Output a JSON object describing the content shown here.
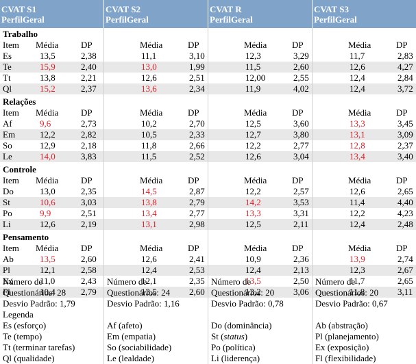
{
  "header": [
    {
      "title": "CVAT S1",
      "sub": "PerfilGeral"
    },
    {
      "title": "CVAT S2",
      "sub": "PerfilGeral"
    },
    {
      "title": "CVAT R",
      "sub": "PerfilGeral"
    },
    {
      "title": "CVAT S3",
      "sub": "PerfilGeral"
    }
  ],
  "col_labels": {
    "item": "Item",
    "media": "Média",
    "dp": "DP"
  },
  "sections": [
    {
      "name": "Trabalho",
      "rows": [
        {
          "item": "Es",
          "v": [
            [
              "13,5",
              false,
              "2,38"
            ],
            [
              "11,1",
              false,
              "3,10"
            ],
            [
              "12,3",
              false,
              "3,29"
            ],
            [
              "11,7",
              false,
              "2,83"
            ]
          ]
        },
        {
          "item": "Te",
          "v": [
            [
              "15,9",
              true,
              "2,40"
            ],
            [
              "13,0",
              true,
              "1,99"
            ],
            [
              "11,5",
              false,
              "2,60"
            ],
            [
              "12,6",
              false,
              "4,27"
            ]
          ]
        },
        {
          "item": "Tt",
          "v": [
            [
              "13,8",
              false,
              "2,21"
            ],
            [
              "12,6",
              false,
              "2,51"
            ],
            [
              "12,00",
              false,
              "2,55"
            ],
            [
              "12,4",
              false,
              "2,84"
            ]
          ]
        },
        {
          "item": "Ql",
          "v": [
            [
              "15,2",
              true,
              "2,37"
            ],
            [
              "13,6",
              true,
              "2,34"
            ],
            [
              "11,9",
              false,
              "4,02"
            ],
            [
              "12,4",
              false,
              "3,72"
            ]
          ]
        }
      ]
    },
    {
      "name": "Relações",
      "rows": [
        {
          "item": "Af",
          "v": [
            [
              "9,6",
              true,
              "2,73"
            ],
            [
              "10,2",
              false,
              "2,70"
            ],
            [
              "12,5",
              false,
              "3,60"
            ],
            [
              "13,3",
              true,
              "3,45"
            ]
          ]
        },
        {
          "item": "Em",
          "v": [
            [
              "12,2",
              false,
              "2,82"
            ],
            [
              "10,5",
              false,
              "2,33"
            ],
            [
              "12,7",
              false,
              "3,80"
            ],
            [
              "13,1",
              true,
              "3,09"
            ]
          ]
        },
        {
          "item": "So",
          "v": [
            [
              "12,9",
              false,
              "2,18"
            ],
            [
              "11,8",
              false,
              "2,66"
            ],
            [
              "12,2",
              false,
              "2,77"
            ],
            [
              "12,8",
              true,
              "2,37"
            ]
          ]
        },
        {
          "item": "Le",
          "v": [
            [
              "14,0",
              true,
              "3,83"
            ],
            [
              "11,5",
              false,
              "2,52"
            ],
            [
              "12,6",
              false,
              "3,04"
            ],
            [
              "13,4",
              true,
              "3,40"
            ]
          ]
        }
      ]
    },
    {
      "name": "Controle",
      "rows": [
        {
          "item": "Do",
          "v": [
            [
              "13,0",
              false,
              "2,35"
            ],
            [
              "14,5",
              true,
              "2,87"
            ],
            [
              "12,2",
              false,
              "2,57"
            ],
            [
              "12,6",
              false,
              "2,65"
            ]
          ]
        },
        {
          "item": "St",
          "v": [
            [
              "10,6",
              true,
              "3,03"
            ],
            [
              "13,8",
              true,
              "2,79"
            ],
            [
              "14,2",
              true,
              "3,53"
            ],
            [
              "11,4",
              false,
              "4,40"
            ]
          ]
        },
        {
          "item": "Po",
          "v": [
            [
              "9,9",
              true,
              "2,51"
            ],
            [
              "13,4",
              true,
              "2,77"
            ],
            [
              "13,3",
              true,
              "3,31"
            ],
            [
              "12,2",
              false,
              "4,23"
            ]
          ]
        },
        {
          "item": "Li",
          "v": [
            [
              "12,6",
              false,
              "2,19"
            ],
            [
              "13,1",
              true,
              "2,98"
            ],
            [
              "12,5",
              false,
              "2,11"
            ],
            [
              "12,4",
              false,
              "2,48"
            ]
          ]
        }
      ]
    },
    {
      "name": "Pensamento",
      "rows": [
        {
          "item": "Ab",
          "v": [
            [
              "13,5",
              true,
              "2,60"
            ],
            [
              "12,6",
              false,
              "2,41"
            ],
            [
              "10,9",
              false,
              "2,36"
            ],
            [
              "13,9",
              true,
              "2,74"
            ]
          ]
        },
        {
          "item": "Pl",
          "v": [
            [
              "12,1",
              false,
              "2,58"
            ],
            [
              "12,4",
              false,
              "2,53"
            ],
            [
              "12,4",
              false,
              "2,13"
            ],
            [
              "12,3",
              false,
              "2,67"
            ]
          ]
        },
        {
          "item": "Ex",
          "v": [
            [
              "11,0",
              false,
              "2,43"
            ],
            [
              "12,1",
              false,
              "2,35"
            ],
            [
              "13,5",
              true,
              "2,50"
            ],
            [
              "11,7",
              false,
              "2,65"
            ]
          ]
        },
        {
          "item": "Fl",
          "v": [
            [
              "10,4",
              false,
              "2,79"
            ],
            [
              "13,5",
              false,
              "2,60"
            ],
            [
              "13,2",
              false,
              "3,06"
            ],
            [
              "11,8",
              false,
              "3,11"
            ]
          ]
        }
      ]
    }
  ],
  "footer": {
    "stats": [
      {
        "q_label": "Número de",
        "q_label2": "Questionários:",
        "q_val": "28",
        "dp_label": "Desvio Padrão:",
        "dp_val": "1,79"
      },
      {
        "q_label": "Número de",
        "q_label2": "Questionários:",
        "q_val": "24",
        "dp_label": "Desvio Padrão:",
        "dp_val": "1,16"
      },
      {
        "q_label": "Número de",
        "q_label2": "Questionários:",
        "q_val": "20",
        "dp_label": "Desvio Padrão:",
        "dp_val": "0,78"
      },
      {
        "q_label": "Número de",
        "q_label2": "Questionários:",
        "q_val": "20",
        "dp_label": "Desvio Padrão:",
        "dp_val": "0,67"
      }
    ],
    "legend_title": "Legenda",
    "legend": [
      [
        "Es (esforço)",
        "Te (tempo)",
        "Tt (terminar tarefas)",
        "Ql (qualidade)"
      ],
      [
        "Af (afeto)",
        "Em (empatia)",
        "So (sociabilidade)",
        "Le (lealdade)"
      ],
      [
        "Do (dominância)",
        "St (status)",
        "Po (política)",
        "Li (liderença)"
      ],
      [
        "Ab (abstração)",
        "Pl (planejamento)",
        "Ex (exposição)",
        "Fl (flexibilidade)"
      ]
    ]
  }
}
